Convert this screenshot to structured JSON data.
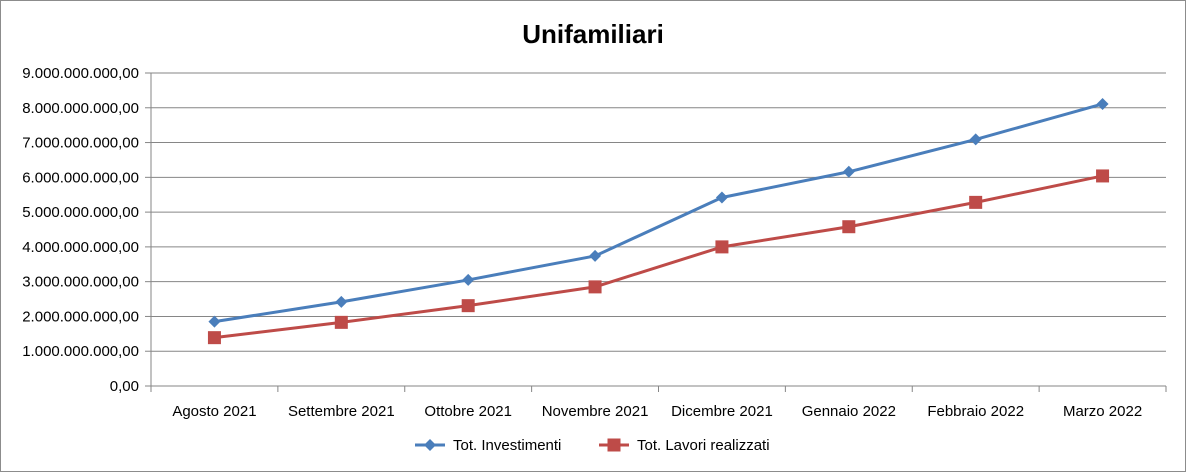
{
  "chart_data": {
    "type": "line",
    "title": "Unifamiliari",
    "xlabel": "",
    "ylabel": "",
    "categories": [
      "Agosto 2021",
      "Settembre 2021",
      "Ottobre 2021",
      "Novembre 2021",
      "Dicembre 2021",
      "Gennaio 2022",
      "Febbraio 2022",
      "Marzo 2022"
    ],
    "series": [
      {
        "name": "Tot. Investimenti",
        "color": "#4a7ebb",
        "marker": "diamond",
        "values": [
          1850000000,
          2420000000,
          3050000000,
          3740000000,
          5420000000,
          6160000000,
          7090000000,
          8110000000
        ]
      },
      {
        "name": "Tot. Lavori realizzati",
        "color": "#be4b48",
        "marker": "square",
        "values": [
          1390000000,
          1830000000,
          2310000000,
          2850000000,
          4000000000,
          4580000000,
          5280000000,
          6040000000
        ]
      }
    ],
    "ylim": [
      0,
      9000000000
    ],
    "yticks": [
      0,
      1000000000,
      2000000000,
      3000000000,
      4000000000,
      5000000000,
      6000000000,
      7000000000,
      8000000000,
      9000000000
    ],
    "ytick_labels": [
      "0,00",
      "1.000.000.000,00",
      "2.000.000.000,00",
      "3.000.000.000,00",
      "4.000.000.000,00",
      "5.000.000.000,00",
      "6.000.000.000,00",
      "7.000.000.000,00",
      "8.000.000.000,00",
      "9.000.000.000,00"
    ],
    "grid": true,
    "legend_position": "bottom"
  }
}
